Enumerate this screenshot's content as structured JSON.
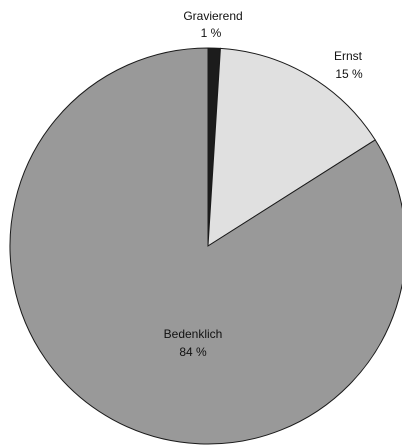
{
  "chart_data": {
    "type": "pie",
    "title": "",
    "slices": [
      {
        "label": "Gravierend",
        "value": 1,
        "value_label": "1 %",
        "color": "#1c1c1c"
      },
      {
        "label": "Ernst",
        "value": 15,
        "value_label": "15 %",
        "color": "#e0e0e0"
      },
      {
        "label": "Bedenklich",
        "value": 84,
        "value_label": "84 %",
        "color": "#999999"
      }
    ],
    "start_angle_deg": 0,
    "direction": "clockwise",
    "legend": "none"
  }
}
